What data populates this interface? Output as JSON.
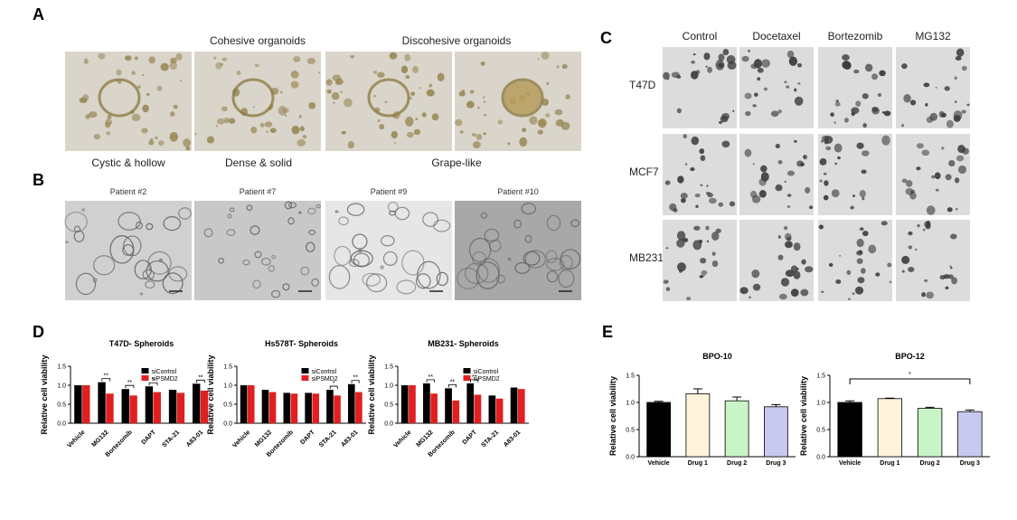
{
  "panels": {
    "A": {
      "label": "A",
      "top_labels": [
        "Cohesive organoids",
        "Discohesive organoids"
      ],
      "bottom_labels": [
        "Cystic & hollow",
        "Dense & solid",
        "Grape-like"
      ]
    },
    "B": {
      "label": "B",
      "photos": [
        "Patient #2",
        "Patient #7",
        "Patient #9",
        "Patient #10"
      ]
    },
    "C": {
      "label": "C",
      "columns": [
        "Control",
        "Docetaxel",
        "Bortezomib",
        "MG132"
      ],
      "rows": [
        "T47D",
        "MCF7",
        "MB231"
      ]
    },
    "D": {
      "label": "D"
    },
    "E": {
      "label": "E"
    }
  },
  "chart_data": [
    {
      "type": "bar",
      "title": "T47D- Spheroids",
      "ylabel": "Relative cell viability",
      "categories": [
        "Vehicle",
        "MG132",
        "Bortezomib",
        "DAPT",
        "STA-21",
        "A83-01"
      ],
      "series": [
        {
          "name": "siControl",
          "color": "#000000",
          "values": [
            1.0,
            1.08,
            0.9,
            0.97,
            0.88,
            1.04
          ]
        },
        {
          "name": "siPSMD2",
          "color": "#e02020",
          "values": [
            1.0,
            0.78,
            0.73,
            0.82,
            0.8,
            0.86
          ]
        }
      ],
      "significance": [
        null,
        "**",
        "**",
        "*",
        null,
        "**"
      ],
      "ylim": [
        0,
        1.5
      ],
      "yticks": [
        {
          "value": 0,
          "label": "0.0"
        },
        0.5,
        {
          "value": 1,
          "label": "1.0"
        },
        1.5
      ]
    },
    {
      "type": "bar",
      "title": "Hs578T- Spheroids",
      "ylabel": "Relative cell viability",
      "categories": [
        "Vehicle",
        "MG132",
        "Bortezomib",
        "DAPT",
        "STA-21",
        "A83-01"
      ],
      "series": [
        {
          "name": "siControl",
          "color": "#000000",
          "values": [
            1.0,
            0.88,
            0.8,
            0.8,
            0.88,
            1.03
          ]
        },
        {
          "name": "siPSMD2",
          "color": "#e02020",
          "values": [
            1.0,
            0.82,
            0.78,
            0.78,
            0.73,
            0.82
          ]
        }
      ],
      "significance": [
        null,
        null,
        null,
        null,
        "*",
        "**"
      ],
      "ylim": [
        0,
        1.5
      ],
      "yticks": [
        {
          "value": 0,
          "label": "0.0"
        },
        0.5,
        {
          "value": 1,
          "label": "1.0"
        },
        1.5
      ]
    },
    {
      "type": "bar",
      "title": "MB231- Spheroids",
      "ylabel": "Relative cell viability",
      "categories": [
        "Vehicle",
        "MG132",
        "Bortezomib",
        "DAPT",
        "STA-21",
        "A83-01"
      ],
      "series": [
        {
          "name": "siControl",
          "color": "#000000",
          "values": [
            1.0,
            1.05,
            0.92,
            1.05,
            0.73,
            0.94
          ]
        },
        {
          "name": "siPSMD2",
          "color": "#e02020",
          "values": [
            1.0,
            0.78,
            0.6,
            0.75,
            0.65,
            0.9
          ]
        }
      ],
      "significance": [
        null,
        "**",
        "**",
        "**",
        null,
        null
      ],
      "ylim": [
        0,
        1.5
      ],
      "yticks": [
        {
          "value": 0,
          "label": "0.0"
        },
        0.5,
        {
          "value": 1,
          "label": "1.0"
        },
        1.5
      ]
    },
    {
      "type": "bar",
      "title": "BPO-10",
      "ylabel": "Relative cell viability",
      "categories": [
        "Vehicle",
        "Drug 1",
        "Drug 2",
        "Drug 3"
      ],
      "values": [
        1.0,
        1.16,
        1.03,
        0.92
      ],
      "errors": [
        0.02,
        0.09,
        0.07,
        0.04
      ],
      "colors": [
        "#000000",
        "#fff3dc",
        "#c8f5c8",
        "#c8c8f0"
      ],
      "ylim": [
        0,
        1.5
      ],
      "yticks": [
        {
          "value": 0,
          "label": "0.0"
        },
        0.5,
        {
          "value": 1,
          "label": "1.0"
        },
        1.5
      ]
    },
    {
      "type": "bar",
      "title": "BPO-12",
      "ylabel": "Relative cell viability",
      "categories": [
        "Vehicle",
        "Drug 1",
        "Drug 2",
        "Drug 3"
      ],
      "values": [
        1.0,
        1.07,
        0.89,
        0.83
      ],
      "errors": [
        0.03,
        0.01,
        0.02,
        0.03
      ],
      "colors": [
        "#000000",
        "#fff3dc",
        "#c8f5c8",
        "#c8c8f0"
      ],
      "annotation": "*",
      "ylim": [
        0,
        1.5
      ],
      "yticks": [
        {
          "value": 0,
          "label": "0.0"
        },
        0.5,
        {
          "value": 1,
          "label": "1.0"
        },
        1.5
      ]
    }
  ]
}
